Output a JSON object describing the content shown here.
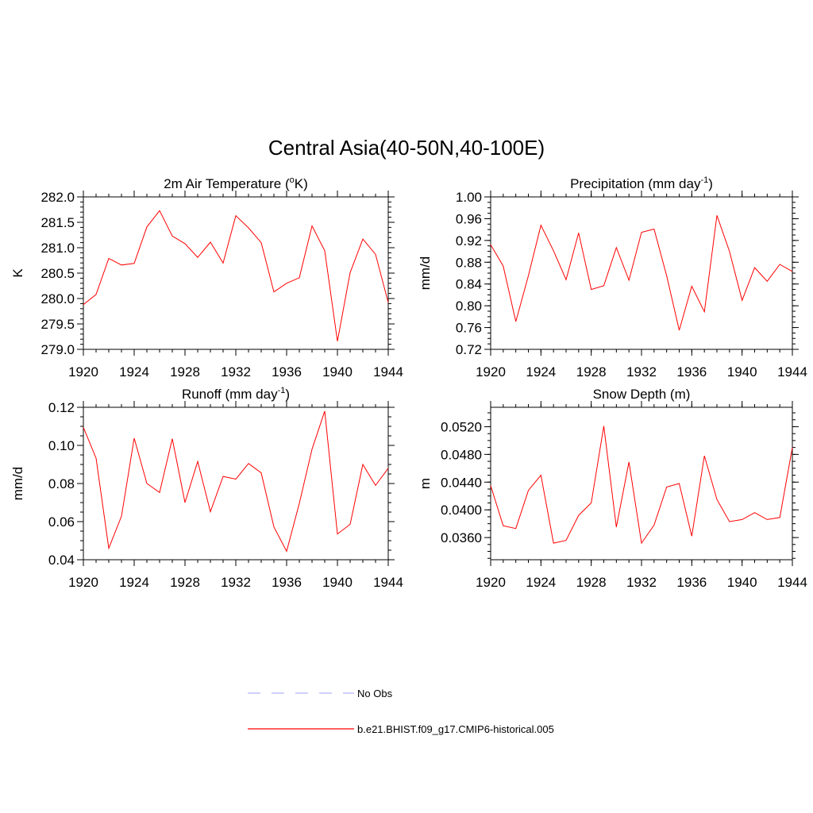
{
  "figure": {
    "title": "Central Asia(40-50N,40-100E)"
  },
  "legend": {
    "entries": [
      {
        "label": "No Obs",
        "style": "dashed",
        "color": "#b3b3ff"
      },
      {
        "label": "b.e21.BHIST.f09_g17.CMIP6-historical.005",
        "style": "solid",
        "color": "#ff0000"
      }
    ]
  },
  "chart_data": [
    {
      "type": "line",
      "title_parts": [
        "2m Air Temperature (",
        "o",
        "K)"
      ],
      "ylabel": "K",
      "x": [
        1920,
        1921,
        1922,
        1923,
        1924,
        1925,
        1926,
        1927,
        1928,
        1929,
        1930,
        1931,
        1932,
        1933,
        1934,
        1935,
        1936,
        1937,
        1938,
        1939,
        1940,
        1941,
        1942,
        1943,
        1944
      ],
      "xlim": [
        1920,
        1944
      ],
      "xticks": [
        1920,
        1924,
        1928,
        1932,
        1936,
        1940,
        1944
      ],
      "xtick_labels": [
        "1920",
        "1924",
        "1928",
        "1932",
        "1936",
        "1940",
        "1944"
      ],
      "ylim": [
        279.0,
        282.0
      ],
      "yticks": [
        279.0,
        279.5,
        280.0,
        280.5,
        281.0,
        281.5,
        282.0
      ],
      "ytick_labels": [
        "279.0",
        "279.5",
        "280.0",
        "280.5",
        "281.0",
        "281.5",
        "282.0"
      ],
      "yminor": 0.1,
      "series": [
        {
          "color": "#ff0000",
          "values": [
            279.88,
            280.08,
            280.79,
            280.66,
            280.69,
            281.41,
            281.73,
            281.23,
            281.08,
            280.81,
            281.11,
            280.7,
            281.63,
            281.39,
            281.1,
            280.13,
            280.3,
            280.41,
            281.43,
            280.94,
            279.16,
            280.51,
            281.17,
            280.87,
            279.92
          ]
        }
      ]
    },
    {
      "type": "line",
      "title_parts": [
        "Precipitation (mm day",
        "-1",
        ")"
      ],
      "ylabel": "mm/d",
      "x": [
        1920,
        1921,
        1922,
        1923,
        1924,
        1925,
        1926,
        1927,
        1928,
        1929,
        1930,
        1931,
        1932,
        1933,
        1934,
        1935,
        1936,
        1937,
        1938,
        1939,
        1940,
        1941,
        1942,
        1943,
        1944
      ],
      "xlim": [
        1920,
        1944
      ],
      "xticks": [
        1920,
        1924,
        1928,
        1932,
        1936,
        1940,
        1944
      ],
      "xtick_labels": [
        "1920",
        "1924",
        "1928",
        "1932",
        "1936",
        "1940",
        "1944"
      ],
      "ylim": [
        0.72,
        1.0
      ],
      "yticks": [
        0.72,
        0.76,
        0.8,
        0.84,
        0.88,
        0.92,
        0.96,
        1.0
      ],
      "ytick_labels": [
        "0.72",
        "0.76",
        "0.80",
        "0.84",
        "0.88",
        "0.92",
        "0.96",
        "1.00"
      ],
      "yminor": 0.01,
      "series": [
        {
          "color": "#ff0000",
          "values": [
            0.912,
            0.873,
            0.771,
            0.855,
            0.948,
            0.901,
            0.848,
            0.934,
            0.83,
            0.837,
            0.907,
            0.847,
            0.935,
            0.941,
            0.855,
            0.755,
            0.836,
            0.789,
            0.966,
            0.9,
            0.81,
            0.87,
            0.845,
            0.876,
            0.863
          ]
        }
      ]
    },
    {
      "type": "line",
      "title_parts": [
        "Runoff (mm day",
        "-1",
        ")"
      ],
      "ylabel": "mm/d",
      "x": [
        1920,
        1921,
        1922,
        1923,
        1924,
        1925,
        1926,
        1927,
        1928,
        1929,
        1930,
        1931,
        1932,
        1933,
        1934,
        1935,
        1936,
        1937,
        1938,
        1939,
        1940,
        1941,
        1942,
        1943,
        1944
      ],
      "xlim": [
        1920,
        1944
      ],
      "xticks": [
        1920,
        1924,
        1928,
        1932,
        1936,
        1940,
        1944
      ],
      "xtick_labels": [
        "1920",
        "1924",
        "1928",
        "1932",
        "1936",
        "1940",
        "1944"
      ],
      "ylim": [
        0.04,
        0.12
      ],
      "yticks": [
        0.04,
        0.06,
        0.08,
        0.1,
        0.12
      ],
      "ytick_labels": [
        "0.04",
        "0.06",
        "0.08",
        "0.10",
        "0.12"
      ],
      "yminor": 0.005,
      "series": [
        {
          "color": "#ff0000",
          "values": [
            0.1095,
            0.0933,
            0.046,
            0.0628,
            0.1038,
            0.08,
            0.0753,
            0.1035,
            0.07,
            0.0916,
            0.0652,
            0.0837,
            0.0823,
            0.0905,
            0.0856,
            0.0572,
            0.0444,
            0.0696,
            0.098,
            0.118,
            0.0535,
            0.0586,
            0.09,
            0.079,
            0.088
          ]
        }
      ]
    },
    {
      "type": "line",
      "title_parts": [
        "Snow Depth (m)"
      ],
      "ylabel": "m",
      "x": [
        1920,
        1921,
        1922,
        1923,
        1924,
        1925,
        1926,
        1927,
        1928,
        1929,
        1930,
        1931,
        1932,
        1933,
        1934,
        1935,
        1936,
        1937,
        1938,
        1939,
        1940,
        1941,
        1942,
        1943,
        1944
      ],
      "xlim": [
        1920,
        1944
      ],
      "xticks": [
        1920,
        1924,
        1928,
        1932,
        1936,
        1940,
        1944
      ],
      "xtick_labels": [
        "1920",
        "1924",
        "1928",
        "1932",
        "1936",
        "1940",
        "1944"
      ],
      "ylim": [
        0.0328,
        0.0548
      ],
      "yticks": [
        0.036,
        0.04,
        0.044,
        0.048,
        0.052
      ],
      "ytick_labels": [
        "0.0360",
        "0.0400",
        "0.0440",
        "0.0480",
        "0.0520"
      ],
      "yminor": 0.001,
      "series": [
        {
          "color": "#ff0000",
          "values": [
            0.0435,
            0.0377,
            0.0373,
            0.0428,
            0.045,
            0.0352,
            0.0356,
            0.0392,
            0.041,
            0.0521,
            0.0375,
            0.0469,
            0.0352,
            0.0378,
            0.0433,
            0.0438,
            0.0362,
            0.0478,
            0.0415,
            0.0383,
            0.0386,
            0.0396,
            0.0386,
            0.0389,
            0.049
          ]
        }
      ]
    }
  ]
}
